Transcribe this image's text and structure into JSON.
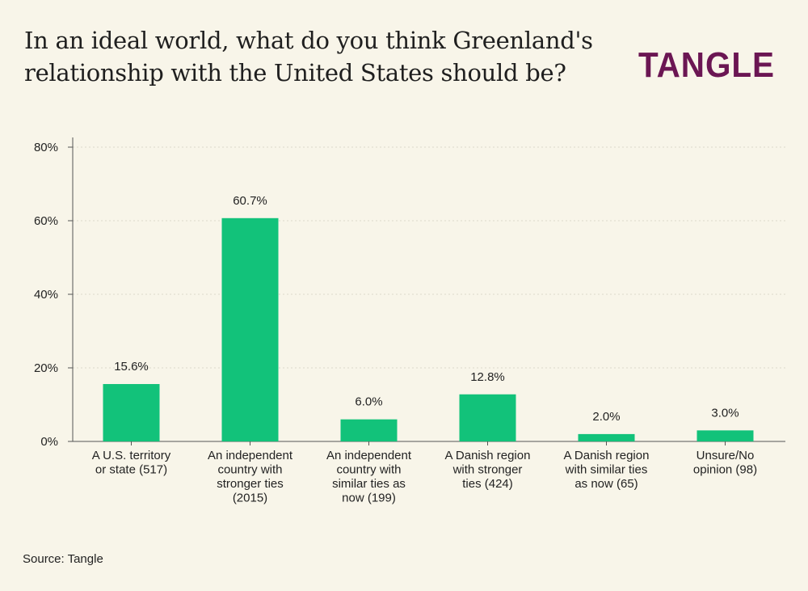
{
  "header": {
    "title_lines": [
      "In an ideal world, what do you think Greenland's",
      "relationship with the United States should be?"
    ],
    "logo_text": "TANGLE"
  },
  "footer": {
    "source": "Source: Tangle"
  },
  "colors": {
    "background": "#f8f5e9",
    "bar": "#12c27a",
    "logo": "#6b1653",
    "axis": "#555555",
    "grid": "#dcd9cc"
  },
  "chart_data": {
    "type": "bar",
    "title": "In an ideal world, what do you think Greenland's relationship with the United States should be?",
    "xlabel": "",
    "ylabel": "",
    "ylim": [
      0,
      80
    ],
    "yticks": [
      0,
      20,
      40,
      60,
      80
    ],
    "ytick_labels": [
      "0%",
      "20%",
      "40%",
      "60%",
      "80%"
    ],
    "grid": true,
    "categories": [
      [
        "A U.S. territory",
        "or state (517)"
      ],
      [
        "An independent",
        "country with",
        "stronger ties",
        "(2015)"
      ],
      [
        "An independent",
        "country with",
        "similar ties as",
        "now (199)"
      ],
      [
        "A Danish region",
        "with stronger",
        "ties (424)"
      ],
      [
        "A Danish region",
        "with similar ties",
        "as now (65)"
      ],
      [
        "Unsure/No",
        "opinion (98)"
      ]
    ],
    "values": [
      15.6,
      60.7,
      6.0,
      12.8,
      2.0,
      3.0
    ],
    "value_labels": [
      "15.6%",
      "60.7%",
      "6.0%",
      "12.8%",
      "2.0%",
      "3.0%"
    ]
  }
}
